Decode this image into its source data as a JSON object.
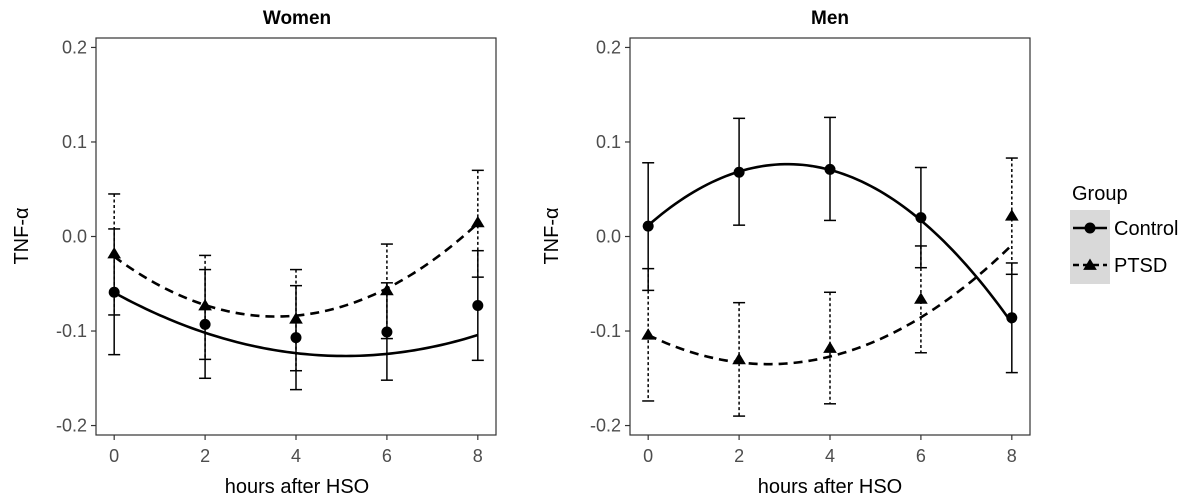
{
  "chart_data": [
    {
      "type": "line",
      "title": "Women",
      "xlabel": "hours after HSO",
      "ylabel": "TNF-α",
      "xlim": [
        -0.4,
        8.4
      ],
      "ylim": [
        -0.21,
        0.21
      ],
      "x_ticks": [
        0,
        2,
        4,
        6,
        8
      ],
      "x_tick_labels": [
        "0",
        "2",
        "4",
        "6",
        "8"
      ],
      "y_ticks": [
        0.2,
        0.1,
        0.0,
        -0.1,
        -0.2
      ],
      "y_tick_labels": [
        "0.2",
        "0.1",
        "0.0",
        "-0.1",
        "-0.2"
      ],
      "grid": false,
      "series": [
        {
          "name": "Control",
          "line_style": "solid",
          "marker": "circle",
          "x": [
            0,
            2,
            4,
            6,
            8
          ],
          "y": [
            -0.059,
            -0.093,
            -0.107,
            -0.101,
            -0.073
          ],
          "y_low": [
            -0.125,
            -0.15,
            -0.162,
            -0.152,
            -0.131
          ],
          "y_high": [
            0.008,
            -0.035,
            -0.052,
            -0.049,
            -0.015
          ],
          "fit_curve": [
            -0.0594,
            -0.0264,
            0.0026
          ]
        },
        {
          "name": "PTSD",
          "line_style": "dashed",
          "marker": "triangle",
          "x": [
            0,
            2,
            4,
            6,
            8
          ],
          "y": [
            -0.018,
            -0.073,
            -0.087,
            -0.057,
            0.015
          ],
          "y_low": [
            -0.083,
            -0.13,
            -0.142,
            -0.108,
            -0.043
          ],
          "y_high": [
            0.045,
            -0.02,
            -0.035,
            -0.008,
            0.07
          ],
          "fit_curve": [
            -0.0213,
            -0.0356,
            0.005
          ]
        }
      ]
    },
    {
      "type": "line",
      "title": "Men",
      "xlabel": "hours after HSO",
      "ylabel": "TNF-α",
      "xlim": [
        -0.4,
        8.4
      ],
      "ylim": [
        -0.21,
        0.21
      ],
      "x_ticks": [
        0,
        2,
        4,
        6,
        8
      ],
      "x_tick_labels": [
        "0",
        "2",
        "4",
        "6",
        "8"
      ],
      "y_ticks": [
        0.2,
        0.1,
        0.0,
        -0.1,
        -0.2
      ],
      "y_tick_labels": [
        "0.2",
        "0.1",
        "0.0",
        "-0.1",
        "-0.2"
      ],
      "grid": false,
      "series": [
        {
          "name": "Control",
          "line_style": "solid",
          "marker": "circle",
          "x": [
            0,
            2,
            4,
            6,
            8
          ],
          "y": [
            0.011,
            0.068,
            0.071,
            0.02,
            -0.086
          ],
          "y_low": [
            -0.057,
            0.012,
            0.017,
            -0.033,
            -0.144
          ],
          "y_high": [
            0.078,
            0.125,
            0.126,
            0.073,
            -0.028
          ],
          "fit_curve": [
            0.0117,
            0.0423,
            -0.0069
          ]
        },
        {
          "name": "PTSD",
          "line_style": "dashed",
          "marker": "triangle",
          "x": [
            0,
            2,
            4,
            6,
            8
          ],
          "y": [
            -0.104,
            -0.13,
            -0.118,
            -0.066,
            0.022
          ],
          "y_low": [
            -0.174,
            -0.19,
            -0.177,
            -0.123,
            -0.04
          ],
          "y_high": [
            -0.034,
            -0.07,
            -0.059,
            -0.01,
            0.083
          ],
          "fit_curve": [
            -0.1042,
            -0.0233,
            0.0044
          ]
        }
      ]
    }
  ],
  "legend": {
    "title": "Group",
    "placement": "right",
    "items": [
      {
        "label": "Control",
        "line_style": "solid",
        "marker": "circle"
      },
      {
        "label": "PTSD",
        "line_style": "dashed",
        "marker": "triangle"
      }
    ]
  },
  "colors": {
    "line": "#000000",
    "panel_border": "#333333",
    "tick_text": "#4d4d4d",
    "legend_key_bg": "#d9d9d9"
  }
}
